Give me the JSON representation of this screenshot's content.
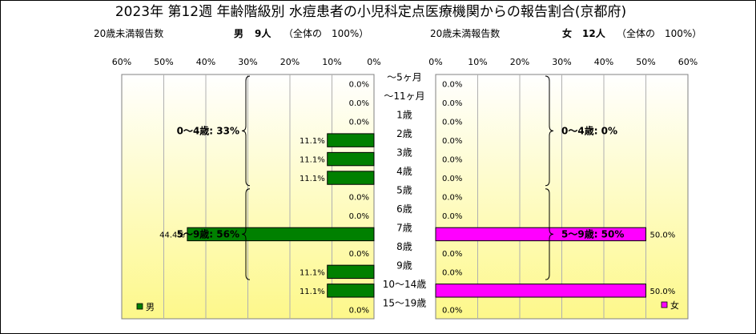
{
  "title": "2023年 第12週 年齢階級別 水痘患者の小児科定点医療機関からの報告割合(京都府)",
  "left_header": {
    "caption": "20歳未満報告数",
    "gender": "男",
    "count": "9人",
    "note": "（全体の　100%）"
  },
  "right_header": {
    "caption": "20歳未満報告数",
    "gender": "女",
    "count": "12人",
    "note": "（全体の　100%）"
  },
  "chart_data": {
    "type": "bar",
    "categories": [
      "～5ヶ月",
      "～11ヶ月",
      "1歳",
      "2歳",
      "3歳",
      "4歳",
      "5歳",
      "6歳",
      "7歳",
      "8歳",
      "9歳",
      "10～14歳",
      "15～19歳"
    ],
    "xlim": [
      0,
      60
    ],
    "ticks": [
      "60%",
      "50%",
      "40%",
      "30%",
      "20%",
      "10%",
      "0%"
    ],
    "ticks_right": [
      "0%",
      "10%",
      "20%",
      "30%",
      "40%",
      "50%",
      "60%"
    ],
    "series": [
      {
        "name": "男",
        "color": "#008000",
        "values": [
          0,
          0,
          0,
          11.1,
          11.1,
          11.1,
          0,
          0,
          44.4,
          0,
          11.1,
          11.1,
          0
        ],
        "labels": [
          "0.0%",
          "0.0%",
          "0.0%",
          "11.1%",
          "11.1%",
          "11.1%",
          "0.0%",
          "0.0%",
          "44.4%",
          "0.0%",
          "11.1%",
          "11.1%",
          "0.0%"
        ],
        "groups": [
          {
            "label": "0～4歳: 33%",
            "from": 0,
            "to": 5
          },
          {
            "label": "5～9歳: 56%",
            "from": 6,
            "to": 10
          }
        ]
      },
      {
        "name": "女",
        "color": "#ff00ff",
        "values": [
          0,
          0,
          0,
          0,
          0,
          0,
          0,
          0,
          50,
          0,
          0,
          50,
          0
        ],
        "labels": [
          "0.0%",
          "0.0%",
          "0.0%",
          "0.0%",
          "0.0%",
          "0.0%",
          "0.0%",
          "0.0%",
          "50.0%",
          "0.0%",
          "0.0%",
          "50.0%",
          "0.0%"
        ],
        "groups": [
          {
            "label": "0～4歳: 0%",
            "from": 0,
            "to": 5
          },
          {
            "label": "5～9歳: 50%",
            "from": 6,
            "to": 10
          }
        ]
      }
    ],
    "grid": true,
    "legend": "bottom"
  }
}
